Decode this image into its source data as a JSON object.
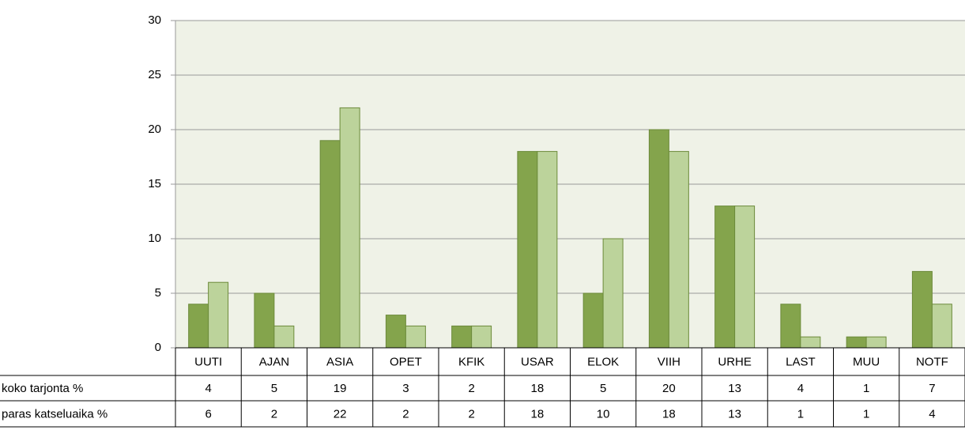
{
  "chart_data": {
    "type": "bar",
    "categories": [
      "UUTI",
      "AJAN",
      "ASIA",
      "OPET",
      "KFIK",
      "USAR",
      "ELOK",
      "VIIH",
      "URHE",
      "LAST",
      "MUU",
      "NOTF"
    ],
    "series": [
      {
        "name": "koko tarjonta %",
        "color": "#84a44c",
        "values": [
          4,
          5,
          19,
          3,
          2,
          18,
          5,
          20,
          13,
          4,
          1,
          7
        ]
      },
      {
        "name": "paras katseluaika %",
        "color": "#bcd39b",
        "values": [
          6,
          2,
          22,
          2,
          2,
          18,
          10,
          18,
          13,
          1,
          1,
          4
        ]
      }
    ],
    "ylim": [
      0,
      30
    ],
    "yticks": [
      0,
      5,
      10,
      15,
      20,
      25,
      30
    ],
    "grid": true
  }
}
